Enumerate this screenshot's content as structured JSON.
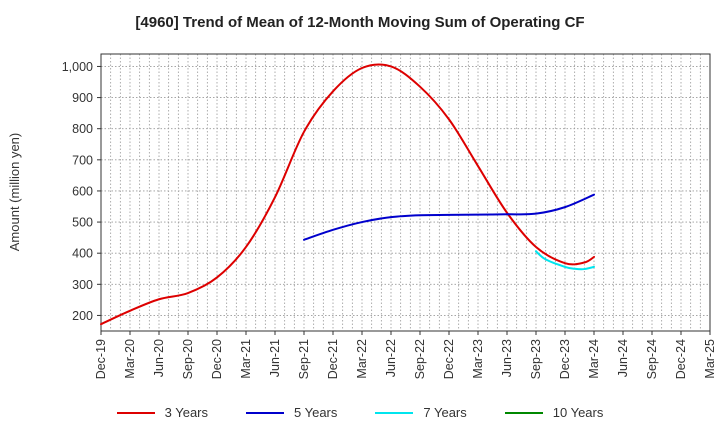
{
  "chart_data": {
    "type": "line",
    "title": "[4960]  Trend of Mean of 12-Month Moving Sum of Operating CF",
    "xlabel": "",
    "ylabel": "Amount (million yen)",
    "ylim": [
      150,
      1040
    ],
    "yticks": [
      200,
      300,
      400,
      500,
      600,
      700,
      800,
      900,
      1000
    ],
    "ytick_labels": [
      "200",
      "300",
      "400",
      "500",
      "600",
      "700",
      "800",
      "900",
      "1,000"
    ],
    "x_tick_labels": [
      "Dec-19",
      "Mar-20",
      "Jun-20",
      "Sep-20",
      "Dec-20",
      "Mar-21",
      "Jun-21",
      "Sep-21",
      "Dec-21",
      "Mar-22",
      "Jun-22",
      "Sep-22",
      "Dec-22",
      "Mar-23",
      "Jun-23",
      "Sep-23",
      "Dec-23",
      "Mar-24",
      "Jun-24",
      "Sep-24",
      "Dec-24",
      "Mar-25"
    ],
    "x_unit": "months since Dec-19 (tick every 3 months)",
    "x_range": [
      0,
      63
    ],
    "grid": true,
    "legend_position": "bottom",
    "series": [
      {
        "name": "3 Years",
        "color": "#dd0000",
        "x": [
          0,
          3,
          6,
          9,
          12,
          15,
          18,
          21,
          24,
          27,
          30,
          33,
          36,
          39,
          42,
          45,
          48,
          50,
          51
        ],
        "y": [
          172,
          215,
          252,
          272,
          322,
          420,
          580,
          790,
          920,
          995,
          1000,
          935,
          830,
          680,
          530,
          420,
          368,
          370,
          388
        ]
      },
      {
        "name": "5 Years",
        "color": "#0000cc",
        "x": [
          21,
          24,
          27,
          30,
          33,
          36,
          39,
          42,
          45,
          48,
          51
        ],
        "y": [
          443,
          475,
          500,
          516,
          522,
          523,
          524,
          525,
          527,
          548,
          588
        ]
      },
      {
        "name": "7 Years",
        "color": "#00e5ee",
        "x": [
          45,
          46,
          48,
          49,
          50,
          51
        ],
        "y": [
          406,
          380,
          356,
          350,
          349,
          356
        ]
      },
      {
        "name": "10 Years",
        "color": "#008800",
        "x": [],
        "y": []
      }
    ]
  }
}
